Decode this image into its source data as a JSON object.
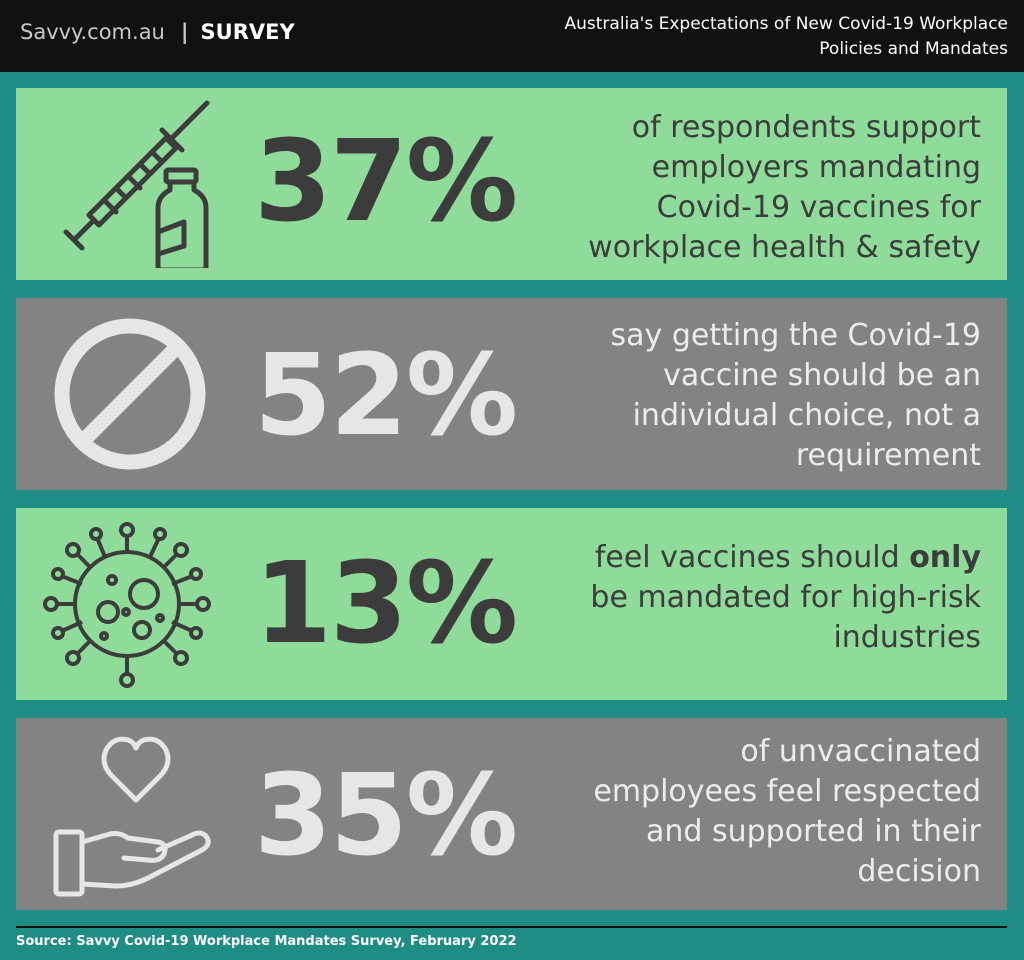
{
  "header": {
    "brand": "Savvy.com.au",
    "separator": "|",
    "section": "SURVEY",
    "title_line1": "Australia's Expectations of New Covid-19 Workplace",
    "title_line2": "Policies and Mandates"
  },
  "stats": [
    {
      "icon": "syringe-vial-icon",
      "percent": "37%",
      "lines": [
        "of respondents support",
        "employers mandating",
        "Covid-19 vaccines for",
        "workplace health & safety"
      ]
    },
    {
      "icon": "prohibited-icon",
      "percent": "52%",
      "lines": [
        "say getting the Covid-19",
        "vaccine should be an",
        "individual choice, not a",
        "requirement"
      ]
    },
    {
      "icon": "virus-icon",
      "percent": "13%",
      "line1_pre": "feel vaccines should ",
      "line1_bold": "only",
      "lines": [
        "be mandated for high-risk",
        "industries"
      ]
    },
    {
      "icon": "heart-hand-icon",
      "percent": "35%",
      "lines": [
        "of unvaccinated",
        "employees feel respected",
        "and supported in their",
        "decision"
      ]
    }
  ],
  "colors": {
    "background": "#1f8c86",
    "header": "#111111",
    "green_panel": "#8fdc9a",
    "grey_panel": "#838383",
    "dark_text": "#3c3c3c",
    "light_text": "#e6e6e6"
  },
  "footer": {
    "source": "Source: Savvy Covid-19 Workplace Mandates Survey, February 2022"
  }
}
